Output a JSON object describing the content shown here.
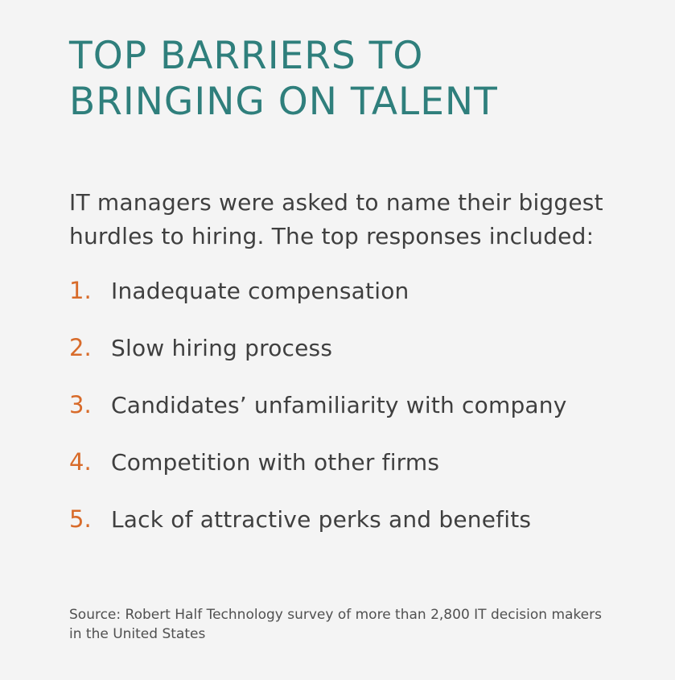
{
  "title": "TOP BARRIERS TO BRINGING ON TALENT",
  "intro": "IT managers were asked to name their biggest hurdles to hiring. The top responses included:",
  "items": [
    {
      "number": "1.",
      "text": "Inadequate compensation"
    },
    {
      "number": "2.",
      "text": "Slow hiring process"
    },
    {
      "number": "3.",
      "text": "Candidates’ unfamiliarity with company"
    },
    {
      "number": "4.",
      "text": "Competition with other firms"
    },
    {
      "number": "5.",
      "text": "Lack of attractive perks and benefits"
    }
  ],
  "source": "Source: Robert Half Technology survey of more than 2,800 IT decision makers in the United States",
  "colors": {
    "background": "#f4f4f4",
    "title": "#2f7f7c",
    "number": "#d86b2a",
    "text": "#3f3f3f"
  }
}
